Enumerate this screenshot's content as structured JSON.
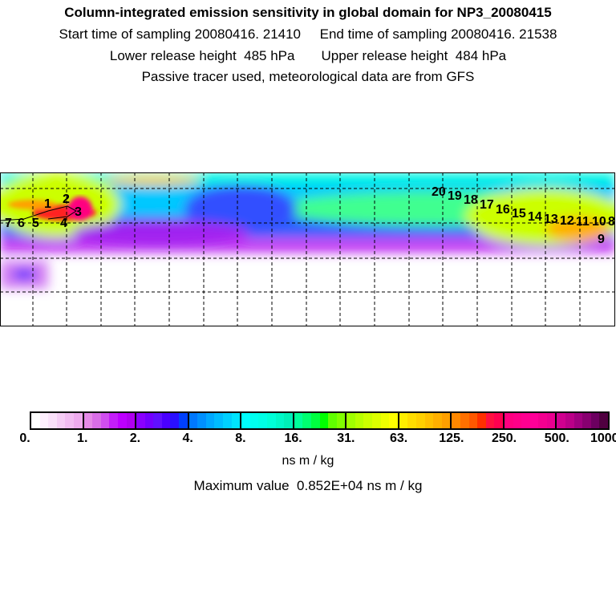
{
  "header": {
    "title": "Column-integrated emission sensitivity in global domain for NP3_20080415",
    "line1": "Start time of sampling 20080416. 21410     End time of sampling 20080416. 21538",
    "line2": "Lower release height  485 hPa       Upper release height  484 hPa",
    "line3": "Passive tracer used, meteorological data are from GFS"
  },
  "map": {
    "trajectory_labels": [
      "1",
      "2",
      "3",
      "4",
      "5",
      "6",
      "7",
      "8",
      "9",
      "10",
      "11",
      "12",
      "13",
      "14",
      "15",
      "16",
      "17",
      "18",
      "19",
      "20"
    ]
  },
  "colorbar": {
    "ticks": [
      "0.",
      "1.",
      "2.",
      "4.",
      "8.",
      "16.",
      "31.",
      "63.",
      "125.",
      "250.",
      "500.",
      "1000."
    ],
    "segments": [
      [
        "#ffffff",
        "#fdeefd",
        "#fae0fa",
        "#f6cdf6",
        "#f2bcf2",
        "#eeaaee"
      ],
      [
        "#e58ae8",
        "#d96ee8",
        "#d04ef0",
        "#c41ef8",
        "#bd00ff",
        "#b000f0"
      ],
      [
        "#8a00ff",
        "#7300ff",
        "#6010ff",
        "#4a00ff",
        "#2a10ff",
        "#0040ff"
      ],
      [
        "#0078ff",
        "#0090ff",
        "#00a8ff",
        "#00bcff",
        "#00d0ff",
        "#00e4ff"
      ],
      [
        "#00ffff",
        "#00fff0",
        "#00ffe6",
        "#00ffd8",
        "#00f8c8",
        "#00f0b8"
      ],
      [
        "#00ff9a",
        "#00ff70",
        "#00ff40",
        "#00ff00",
        "#60ff00",
        "#80ff00"
      ],
      [
        "#a0ff00",
        "#b8ff00",
        "#ccff00",
        "#ddff00",
        "#eeff00",
        "#ffff00"
      ],
      [
        "#ffee00",
        "#ffdd00",
        "#ffd000",
        "#ffc000",
        "#ffb000",
        "#ffa000"
      ],
      [
        "#ff8800",
        "#ff7000",
        "#ff5800",
        "#ff3000",
        "#ff1040",
        "#ff0050"
      ],
      [
        "#ff0080",
        "#ff0088",
        "#ff0090",
        "#ff0098",
        "#f40090",
        "#ea0090"
      ],
      [
        "#d0008f",
        "#bb0088",
        "#a0007f",
        "#880070",
        "#6c0060",
        "#500040"
      ]
    ],
    "unit": "ns m / kg"
  },
  "footer": {
    "max_value": "Maximum value  0.852E+04 ns m / kg"
  }
}
